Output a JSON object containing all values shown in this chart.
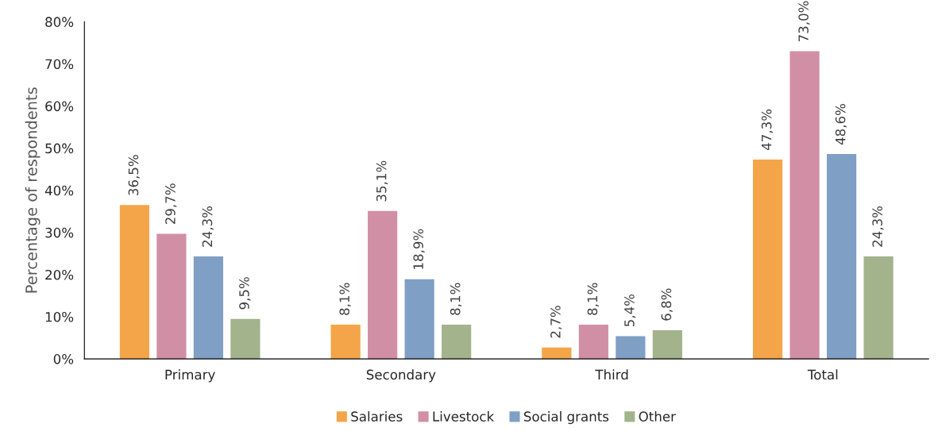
{
  "chart_data": {
    "type": "bar",
    "ylabel": "Percentage of respondents",
    "categories": [
      "Primary",
      "Secondary",
      "Third",
      "Total"
    ],
    "series": [
      {
        "name": "Salaries",
        "color": "#f4a549",
        "values": [
          36.5,
          8.1,
          2.7,
          47.3
        ],
        "value_labels": [
          "36,5%",
          "8,1%",
          "2,7%",
          "47,3%"
        ]
      },
      {
        "name": "Livestock",
        "color": "#d18fa5",
        "values": [
          29.7,
          35.1,
          8.1,
          73.0
        ],
        "value_labels": [
          "29,7%",
          "35,1%",
          "8,1%",
          "73,0%"
        ]
      },
      {
        "name": "Social grants",
        "color": "#7f9fc4",
        "values": [
          24.3,
          18.9,
          5.4,
          48.6
        ],
        "value_labels": [
          "24,3%",
          "18,9%",
          "5,4%",
          "48,6%"
        ]
      },
      {
        "name": "Other",
        "color": "#a3b38c",
        "values": [
          9.5,
          8.1,
          6.8,
          24.3
        ],
        "value_labels": [
          "9,5%",
          "8,1%",
          "6,8%",
          "24,3%"
        ]
      }
    ],
    "ylim": [
      0,
      80
    ],
    "yticks": [
      {
        "value": 0,
        "label": "0%"
      },
      {
        "value": 10,
        "label": "10%"
      },
      {
        "value": 20,
        "label": "20%"
      },
      {
        "value": 30,
        "label": "30%"
      },
      {
        "value": 40,
        "label": "40%"
      },
      {
        "value": 50,
        "label": "50%"
      },
      {
        "value": 60,
        "label": "60%"
      },
      {
        "value": 70,
        "label": "70%"
      },
      {
        "value": 80,
        "label": "80%"
      }
    ],
    "grid": false,
    "legend": "bottom"
  }
}
